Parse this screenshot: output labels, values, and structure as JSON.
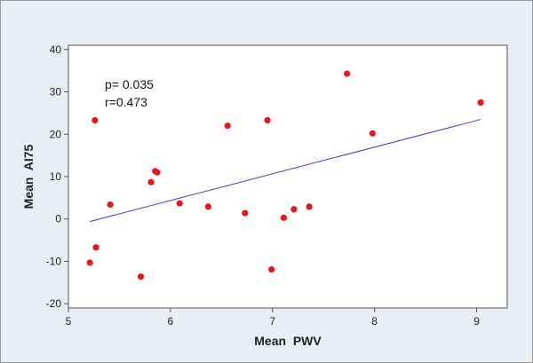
{
  "chart_data": {
    "type": "scatter",
    "xlabel": "Mean  PWV",
    "ylabel": "Mean  AI75",
    "xlim": [
      5,
      9.3
    ],
    "ylim": [
      -21,
      41
    ],
    "xticks": [
      5,
      6,
      7,
      8,
      9
    ],
    "yticks": [
      -20,
      -10,
      0,
      10,
      20,
      30,
      40
    ],
    "annotations": [
      "p= 0.035",
      "r=0.473"
    ],
    "grid": false,
    "series": [
      {
        "points": [
          {
            "x": 5.21,
            "y": -10.3
          },
          {
            "x": 5.26,
            "y": 23.3
          },
          {
            "x": 5.27,
            "y": -6.7
          },
          {
            "x": 5.41,
            "y": 3.4
          },
          {
            "x": 5.71,
            "y": -13.6
          },
          {
            "x": 5.81,
            "y": 8.7
          },
          {
            "x": 5.85,
            "y": 11.3
          },
          {
            "x": 5.87,
            "y": 11.0
          },
          {
            "x": 6.09,
            "y": 3.7
          },
          {
            "x": 6.37,
            "y": 2.9
          },
          {
            "x": 6.56,
            "y": 22.0
          },
          {
            "x": 6.73,
            "y": 1.4
          },
          {
            "x": 6.95,
            "y": 23.3
          },
          {
            "x": 6.99,
            "y": -11.9
          },
          {
            "x": 7.11,
            "y": 0.3
          },
          {
            "x": 7.21,
            "y": 2.3
          },
          {
            "x": 7.36,
            "y": 2.9
          },
          {
            "x": 7.73,
            "y": 34.3
          },
          {
            "x": 7.98,
            "y": 20.2
          },
          {
            "x": 9.04,
            "y": 27.5
          }
        ]
      }
    ],
    "regression_line": {
      "x": [
        5.21,
        9.04
      ],
      "y": [
        -0.6,
        23.5
      ]
    },
    "colors": {
      "points": "#e8161b",
      "line": "#3b3fc4",
      "background": "#e9edf5",
      "plot_area": "#ffffff"
    }
  }
}
